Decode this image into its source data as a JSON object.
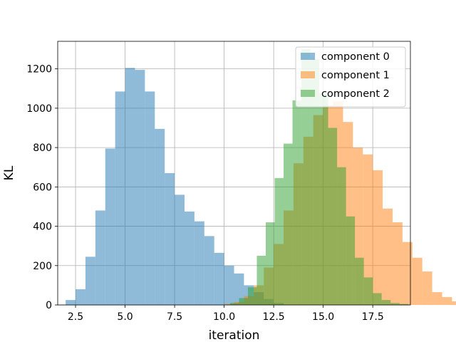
{
  "chart_data": {
    "type": "histogram",
    "xlabel": "iteration",
    "ylabel": "KL",
    "xlim": [
      1.6,
      19.4
    ],
    "ylim": [
      0,
      1340
    ],
    "xticks": [
      2.5,
      5.0,
      7.5,
      10.0,
      12.5,
      15.0,
      17.5
    ],
    "xtick_labels": [
      "2.5",
      "5.0",
      "7.5",
      "10.0",
      "12.5",
      "15.0",
      "17.5"
    ],
    "yticks": [
      0,
      200,
      400,
      600,
      800,
      1000,
      1200
    ],
    "ytick_labels": [
      "0",
      "200",
      "400",
      "600",
      "800",
      "1000",
      "1200"
    ],
    "grid": true,
    "legend_position": "upper right",
    "series": [
      {
        "name": "component 0",
        "color": "#1f77b4",
        "alpha": 0.5,
        "bin_start": 2.0,
        "bin_width": 0.5,
        "values": [
          25,
          80,
          245,
          480,
          795,
          1085,
          1205,
          1195,
          1085,
          895,
          670,
          560,
          475,
          425,
          350,
          265,
          200,
          160,
          100,
          65,
          30,
          10
        ]
      },
      {
        "name": "component 1",
        "color": "#ff7f0e",
        "alpha": 0.5,
        "bin_start": 10.0,
        "bin_width": 0.5,
        "values": [
          5,
          15,
          45,
          100,
          190,
          310,
          480,
          720,
          855,
          965,
          1015,
          1035,
          930,
          800,
          765,
          685,
          490,
          420,
          320,
          240,
          170,
          65,
          40,
          18,
          5
        ]
      },
      {
        "name": "component 2",
        "color": "#2ca02c",
        "alpha": 0.5,
        "bin_start": 10.3,
        "bin_width": 0.45,
        "values": [
          10,
          35,
          90,
          250,
          420,
          645,
          820,
          1040,
          1300,
          1250,
          1075,
          900,
          700,
          450,
          240,
          140,
          60,
          25,
          10,
          5
        ]
      }
    ]
  }
}
